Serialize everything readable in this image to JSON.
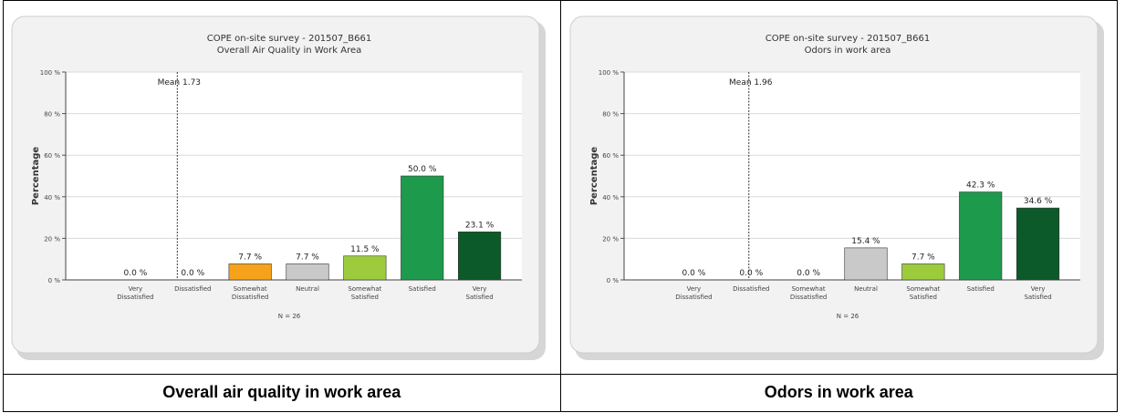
{
  "chart_data": [
    {
      "type": "bar",
      "title_line1": "COPE on-site survey - 201507_B661",
      "title_line2": "Overall Air Quality in Work Area",
      "ylabel": "Percentage",
      "ylim": [
        0,
        100
      ],
      "yticks": [
        "0 %",
        "20 %",
        "40 %",
        "60 %",
        "80 %",
        "100 %"
      ],
      "ytick_values": [
        0,
        20,
        40,
        60,
        80,
        100
      ],
      "categories": [
        [
          "Very",
          "Dissatisfied"
        ],
        [
          "Dissatisfied"
        ],
        [
          "Somewhat",
          "Dissatisfied"
        ],
        [
          "Neutral"
        ],
        [
          "Somewhat",
          "Satisfied"
        ],
        [
          "Satisfied"
        ],
        [
          "Very",
          "Satisfied"
        ]
      ],
      "values": [
        0.0,
        0.0,
        7.7,
        7.7,
        11.5,
        50.0,
        23.1
      ],
      "labels": [
        "0.0 %",
        "0.0 %",
        "7.7 %",
        "7.7 %",
        "11.5 %",
        "50.0 %",
        "23.1 %"
      ],
      "colors": [
        "#d9d9d9",
        "#d9d9d9",
        "#f7a21b",
        "#c9c9c9",
        "#9ccc3c",
        "#1e9a4c",
        "#0c5a2a"
      ],
      "mean_label": "Mean 1.73",
      "mean_value": 1.73,
      "n_label": "N = 26",
      "grid": true
    },
    {
      "type": "bar",
      "title_line1": "COPE on-site survey - 201507_B661",
      "title_line2": "Odors in work area",
      "ylabel": "Percentage",
      "ylim": [
        0,
        100
      ],
      "yticks": [
        "0 %",
        "20 %",
        "40 %",
        "60 %",
        "80 %",
        "100 %"
      ],
      "ytick_values": [
        0,
        20,
        40,
        60,
        80,
        100
      ],
      "categories": [
        [
          "Very",
          "Dissatisfied"
        ],
        [
          "Dissatisfied"
        ],
        [
          "Somewhat",
          "Dissatisfied"
        ],
        [
          "Neutral"
        ],
        [
          "Somewhat",
          "Satisfied"
        ],
        [
          "Satisfied"
        ],
        [
          "Very",
          "Satisfied"
        ]
      ],
      "values": [
        0.0,
        0.0,
        0.0,
        15.4,
        7.7,
        42.3,
        34.6
      ],
      "labels": [
        "0.0 %",
        "0.0 %",
        "0.0 %",
        "15.4 %",
        "7.7 %",
        "42.3 %",
        "34.6 %"
      ],
      "colors": [
        "#d9d9d9",
        "#d9d9d9",
        "#f7a21b",
        "#c9c9c9",
        "#9ccc3c",
        "#1e9a4c",
        "#0c5a2a"
      ],
      "mean_label": "Mean 1.96",
      "mean_value": 1.96,
      "n_label": "N = 26",
      "grid": true
    }
  ],
  "captions": {
    "left": "Overall air quality in work area",
    "right": "Odors in work area"
  }
}
